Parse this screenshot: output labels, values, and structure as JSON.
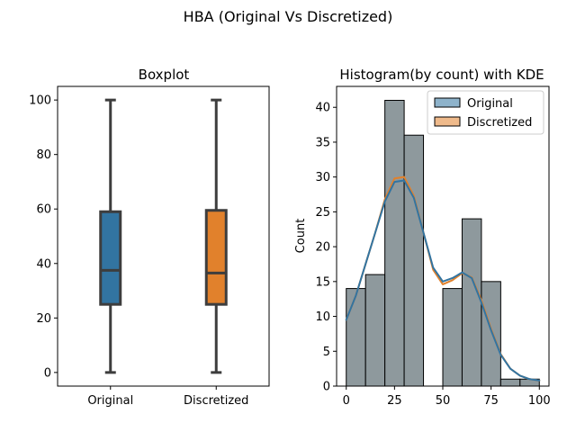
{
  "figure": {
    "title": "HBA (Original Vs Discretized)"
  },
  "chart_data": [
    {
      "type": "box",
      "title": "Boxplot",
      "categories": [
        "Original",
        "Discretized"
      ],
      "ylim": [
        -5,
        105
      ],
      "yticks": [
        0,
        20,
        40,
        60,
        80,
        100
      ],
      "boxes": [
        {
          "category": "Original",
          "min": 0,
          "q1": 25,
          "median": 37.5,
          "q3": 59,
          "max": 100,
          "color": "#3274a1"
        },
        {
          "category": "Discretized",
          "min": 0,
          "q1": 25,
          "median": 36.5,
          "q3": 59.5,
          "max": 100,
          "color": "#e1812c"
        }
      ],
      "grid": false
    },
    {
      "type": "histogram",
      "title": "Histogram(by count) with KDE",
      "xlabel": "",
      "ylabel": "Count",
      "xlim": [
        -5,
        105
      ],
      "ylim": [
        0,
        43
      ],
      "xticks": [
        0,
        25,
        50,
        75,
        100
      ],
      "yticks": [
        0,
        5,
        10,
        15,
        20,
        25,
        30,
        35,
        40
      ],
      "bin_edges": [
        0,
        10,
        20,
        30,
        40,
        50,
        60,
        70,
        80,
        90,
        100
      ],
      "counts": [
        14,
        16,
        41,
        36,
        0,
        14,
        24,
        15,
        1,
        1
      ],
      "bar_color": "#8e999d",
      "legend": {
        "position": "top-right",
        "entries": [
          "Original",
          "Discretized"
        ]
      },
      "series": [
        {
          "name": "Original",
          "color": "#3274a1",
          "kde": {
            "x": [
              0,
              5,
              10,
              15,
              20,
              25,
              30,
              35,
              40,
              45,
              50,
              55,
              60,
              65,
              70,
              75,
              80,
              85,
              90,
              95,
              100
            ],
            "y": [
              9.5,
              13,
              17.5,
              22,
              26.5,
              29.3,
              29.5,
              27,
              22,
              17,
              15,
              15.5,
              16.3,
              15.5,
              12,
              8,
              4.5,
              2.5,
              1.5,
              1,
              0.8
            ]
          }
        },
        {
          "name": "Discretized",
          "color": "#e1812c",
          "kde": {
            "x": [
              0,
              5,
              10,
              15,
              20,
              25,
              30,
              35,
              40,
              45,
              50,
              55,
              60,
              65,
              70,
              75,
              80,
              85,
              90,
              95,
              100
            ],
            "y": [
              9.5,
              13,
              17.5,
              22,
              26.8,
              29.8,
              30,
              27.3,
              22,
              16.7,
              14.6,
              15.2,
              16.2,
              15.6,
              12.3,
              8.2,
              4.6,
              2.5,
              1.5,
              1,
              0.8
            ]
          }
        }
      ],
      "grid": false
    }
  ]
}
